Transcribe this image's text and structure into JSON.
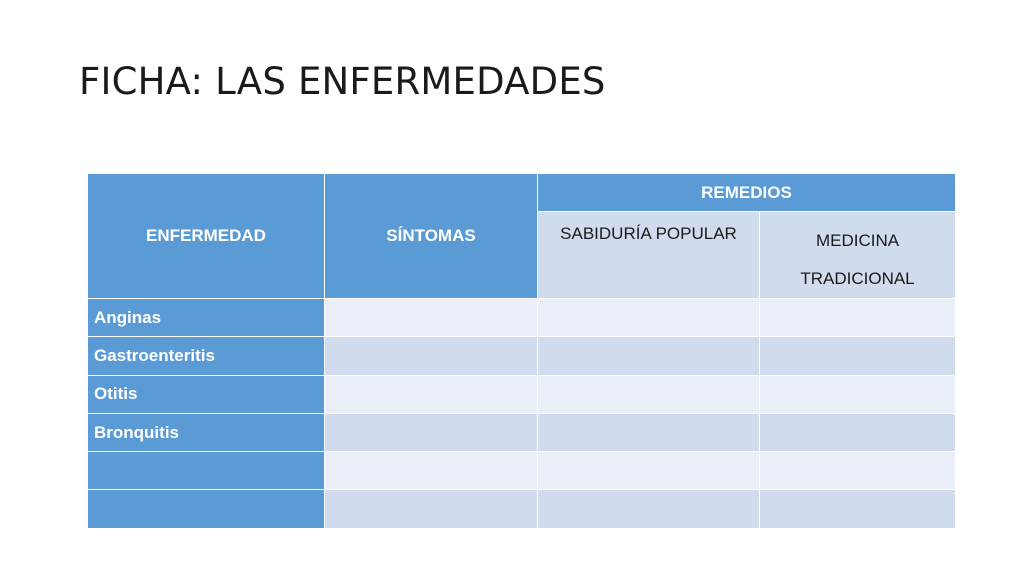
{
  "slide": {
    "title": "FICHA: LAS ENFERMEDADES"
  },
  "table": {
    "headers": {
      "disease": "ENFERMEDAD",
      "symptoms": "SÍNTOMAS",
      "remedies": "REMEDIOS",
      "popular": "SABIDURÍA POPULAR",
      "traditional": "MEDICINA TRADICIONAL"
    },
    "rows": [
      {
        "disease": "Anginas",
        "symptoms": "",
        "popular": "",
        "traditional": ""
      },
      {
        "disease": "Gastroenteritis",
        "symptoms": "",
        "popular": "",
        "traditional": ""
      },
      {
        "disease": "Otitis",
        "symptoms": "",
        "popular": "",
        "traditional": ""
      },
      {
        "disease": "Bronquitis",
        "symptoms": "",
        "popular": "",
        "traditional": ""
      },
      {
        "disease": "",
        "symptoms": "",
        "popular": "",
        "traditional": ""
      },
      {
        "disease": "",
        "symptoms": "",
        "popular": "",
        "traditional": ""
      }
    ]
  },
  "colors": {
    "header_blue": "#5b9bd5",
    "row_light": "#e9eef7",
    "row_dark": "#d0dbee"
  }
}
